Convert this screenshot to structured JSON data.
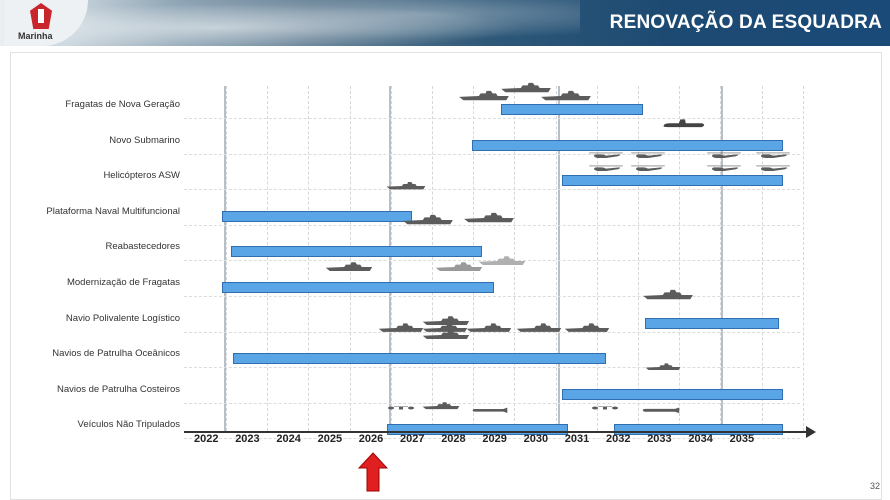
{
  "header": {
    "title": "RENOVAÇÃO DA ESQUADRA",
    "logo_text": "Marinha"
  },
  "chart_data": {
    "type": "gantt",
    "xlabel": "",
    "ylabel": "",
    "years": [
      "2022",
      "2023",
      "2024",
      "2025",
      "2026",
      "2027",
      "2028",
      "2029",
      "2030",
      "2031",
      "2032",
      "2033",
      "2034",
      "2035"
    ],
    "rows": [
      {
        "label": "Fragatas de Nova Geração",
        "bars": [
          [
            2029.1,
            2032.5
          ]
        ]
      },
      {
        "label": "Novo Submarino",
        "bars": [
          [
            2028.4,
            2035.9
          ]
        ]
      },
      {
        "label": "Helicópteros ASW",
        "bars": [
          [
            2030.6,
            2035.9
          ]
        ]
      },
      {
        "label": "Plataforma Naval Multifuncional",
        "bars": [
          [
            2022.35,
            2026.9
          ]
        ]
      },
      {
        "label": "Reabastecedores",
        "bars": [
          [
            2022.55,
            2028.6
          ]
        ]
      },
      {
        "label": "Modernização de Fragatas",
        "bars": [
          [
            2022.35,
            2028.9
          ]
        ]
      },
      {
        "label": "Navio Polivalente Logístico",
        "bars": [
          [
            2032.6,
            2035.8
          ]
        ]
      },
      {
        "label": "Navios de Patrulha Oceânicos",
        "bars": [
          [
            2022.6,
            2031.6
          ]
        ]
      },
      {
        "label": "Navios de Patrulha Costeiros",
        "bars": [
          [
            2030.6,
            2035.9
          ]
        ]
      },
      {
        "label": "Veículos Não Tripulados",
        "bars": [
          [
            2026.35,
            2030.7
          ],
          [
            2031.85,
            2035.9
          ]
        ]
      }
    ],
    "current_year_marker": "2026"
  },
  "page_number": "32",
  "colors": {
    "bar": "#5aa5e6",
    "bar_border": "#2f6fb0",
    "marker": "#e02020",
    "header": "#1d4a72"
  }
}
